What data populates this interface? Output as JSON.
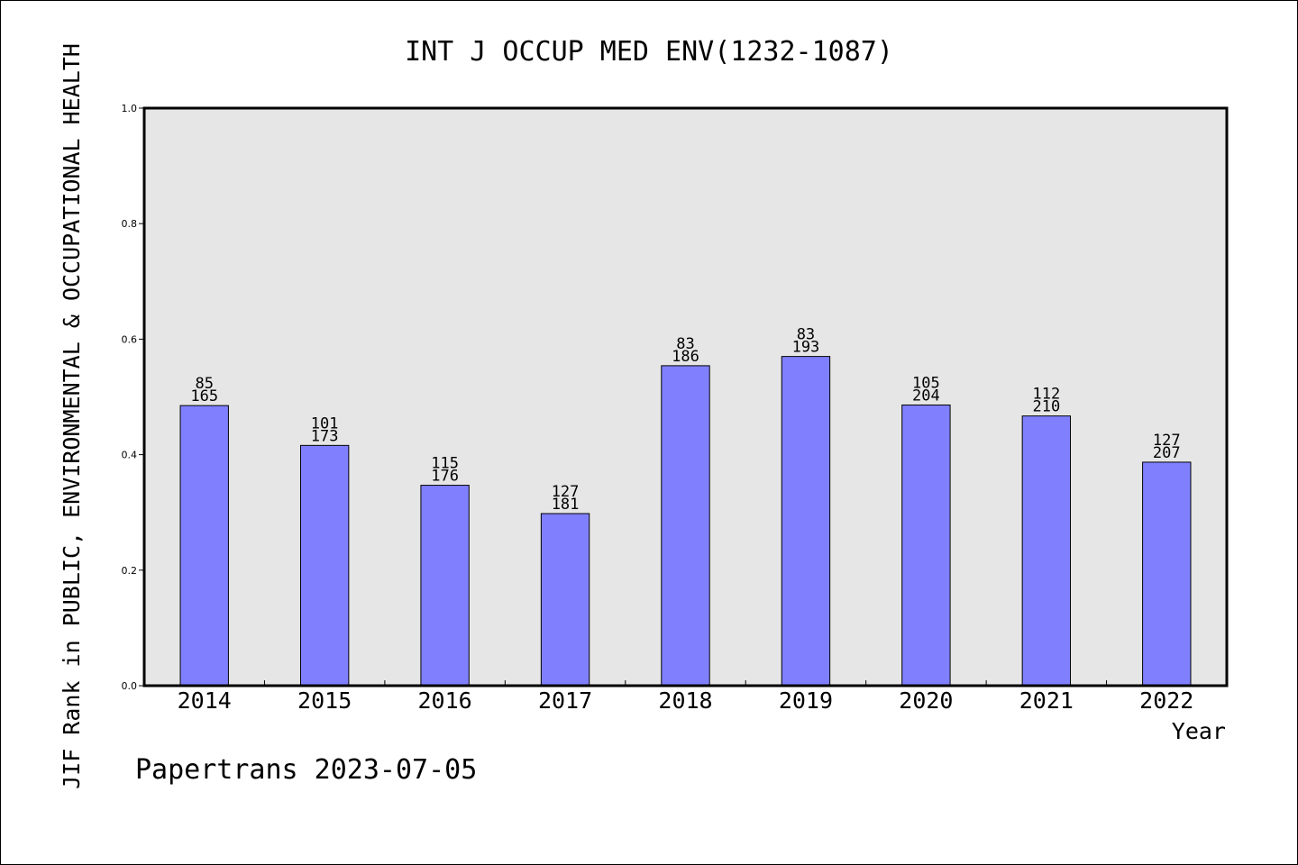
{
  "chart_data": {
    "type": "bar",
    "title": "INT J OCCUP MED ENV(1232-1087)",
    "xlabel": "Year",
    "ylabel": "JIF Rank in PUBLIC, ENVIRONMENTAL & OCCUPATIONAL HEALTH",
    "footer": "Papertrans 2023-07-05",
    "ylim": [
      0,
      1.0
    ],
    "yticks": [
      "0.0",
      "0.2",
      "0.4",
      "0.6",
      "0.8",
      "1.0"
    ],
    "categories": [
      "2014",
      "2015",
      "2016",
      "2017",
      "2018",
      "2019",
      "2020",
      "2021",
      "2022"
    ],
    "values": [
      0.485,
      0.416,
      0.347,
      0.298,
      0.554,
      0.57,
      0.486,
      0.467,
      0.387
    ],
    "rank_labels": [
      "85",
      "101",
      "115",
      "127",
      "83",
      "83",
      "105",
      "112",
      "127"
    ],
    "total_labels": [
      "165",
      "173",
      "176",
      "181",
      "186",
      "193",
      "204",
      "210",
      "207"
    ],
    "grid": false,
    "colors": {
      "bar": "#8080ff",
      "plot_background": "#e6e6e6",
      "frame": "#000000"
    }
  }
}
